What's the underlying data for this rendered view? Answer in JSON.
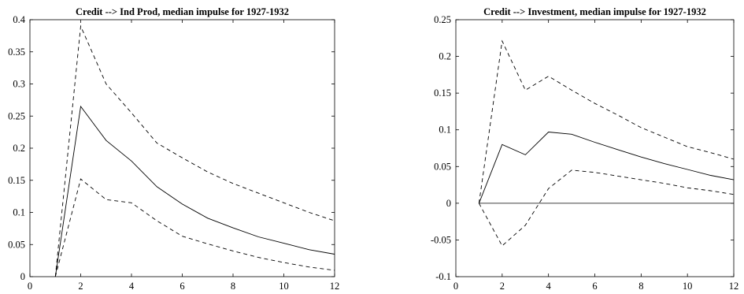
{
  "chart_data": [
    {
      "type": "line",
      "title": "Credit --> Ind Prod, median impulse for 1927-1932",
      "xlabel": "",
      "ylabel": "",
      "xlim": [
        0,
        12
      ],
      "ylim": [
        0,
        0.4
      ],
      "xticks": [
        0,
        2,
        4,
        6,
        8,
        10,
        12
      ],
      "yticks": [
        0,
        0.05,
        0.1,
        0.15,
        0.2,
        0.25,
        0.3,
        0.35,
        0.4
      ],
      "ytick_labels": [
        "0",
        "0.05",
        "0.1",
        "0.15",
        "0.2",
        "0.25",
        "0.3",
        "0.35",
        "0.4"
      ],
      "grid": false,
      "x": [
        1,
        2,
        3,
        4,
        5,
        6,
        7,
        8,
        9,
        10,
        11,
        12
      ],
      "series": [
        {
          "style": "solid",
          "values": [
            0,
            0.265,
            0.212,
            0.18,
            0.14,
            0.113,
            0.091,
            0.076,
            0.062,
            0.052,
            0.042,
            0.035
          ]
        },
        {
          "style": "dashed",
          "values": [
            0,
            0.39,
            0.3,
            0.255,
            0.208,
            0.185,
            0.163,
            0.145,
            0.13,
            0.115,
            0.1,
            0.087
          ]
        },
        {
          "style": "dashed",
          "values": [
            0,
            0.152,
            0.12,
            0.115,
            0.087,
            0.063,
            0.051,
            0.04,
            0.03,
            0.022,
            0.015,
            0.01
          ]
        }
      ]
    },
    {
      "type": "line",
      "title": "Credit --> Investment, median impulse for 1927-1932",
      "xlabel": "",
      "ylabel": "",
      "xlim": [
        0,
        12
      ],
      "ylim": [
        -0.1,
        0.25
      ],
      "xticks": [
        0,
        2,
        4,
        6,
        8,
        10,
        12
      ],
      "yticks": [
        -0.1,
        -0.05,
        0,
        0.05,
        0.1,
        0.15,
        0.2,
        0.25
      ],
      "ytick_labels": [
        "-0.1",
        "-0.05",
        "0",
        "0.05",
        "0.1",
        "0.15",
        "0.2",
        "0.25"
      ],
      "grid": false,
      "x": [
        1,
        2,
        3,
        4,
        5,
        6,
        7,
        8,
        9,
        10,
        11,
        12
      ],
      "zero_line": {
        "x": [
          1,
          12
        ],
        "y": 0
      },
      "series": [
        {
          "style": "solid",
          "values": [
            0,
            0.08,
            0.066,
            0.097,
            0.094,
            0.083,
            0.073,
            0.063,
            0.054,
            0.046,
            0.038,
            0.032
          ]
        },
        {
          "style": "dashed",
          "values": [
            0,
            0.221,
            0.154,
            0.173,
            0.154,
            0.136,
            0.12,
            0.103,
            0.09,
            0.077,
            0.069,
            0.06
          ]
        },
        {
          "style": "dashed",
          "values": [
            0,
            -0.058,
            -0.03,
            0.02,
            0.045,
            0.042,
            0.037,
            0.032,
            0.027,
            0.021,
            0.017,
            0.012
          ]
        }
      ]
    }
  ]
}
